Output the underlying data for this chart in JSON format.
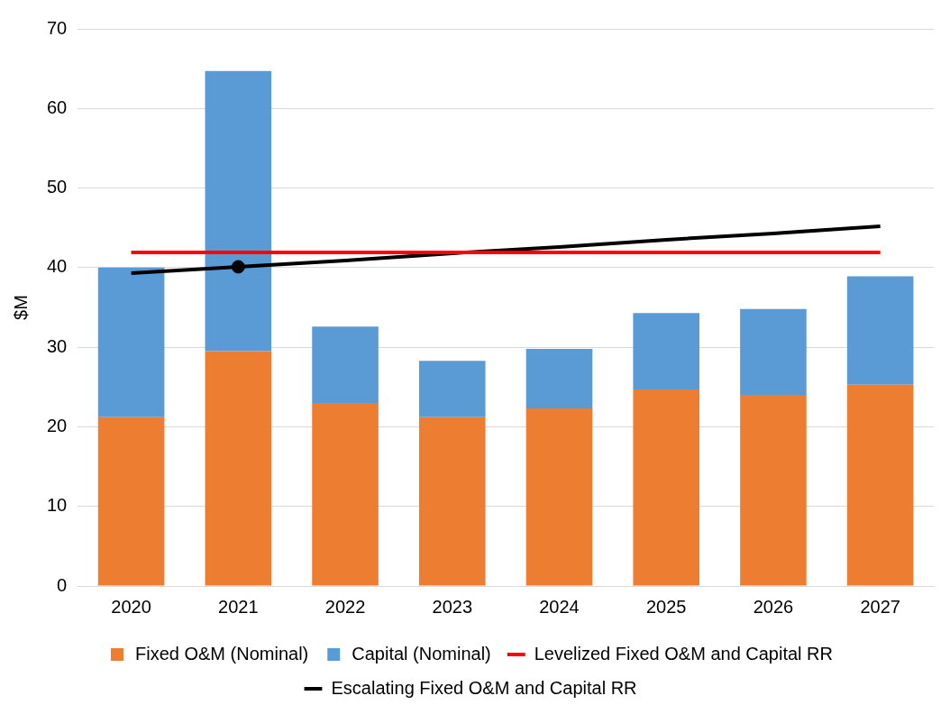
{
  "chart_data": {
    "type": "bar",
    "ylabel": "$M",
    "categories": [
      "2020",
      "2021",
      "2022",
      "2023",
      "2024",
      "2025",
      "2026",
      "2027"
    ],
    "stacked": true,
    "ylim": [
      0,
      70
    ],
    "yticks": [
      0,
      10,
      20,
      30,
      40,
      50,
      60,
      70
    ],
    "grid": "y",
    "legend": "bottom",
    "series": [
      {
        "name": "Fixed O&M (Nominal)",
        "color": "#ed7d31",
        "values": [
          21.2,
          29.5,
          23.0,
          21.2,
          22.3,
          24.7,
          24.0,
          25.3
        ]
      },
      {
        "name": "Capital (Nominal)",
        "color": "#5b9bd5",
        "values": [
          18.8,
          35.2,
          9.6,
          7.1,
          7.5,
          9.6,
          10.8,
          13.6
        ]
      },
      {
        "name": "Levelized Fixed O&M and Capital RR",
        "type": "line",
        "color": "#ff0000",
        "marker": "none",
        "values": [
          41.9,
          41.9,
          41.9,
          41.9,
          41.9,
          41.9,
          41.9,
          41.9
        ]
      },
      {
        "name": "Escalating Fixed O&M and Capital RR",
        "type": "line",
        "color": "#000000",
        "marker": "none",
        "values": [
          39.3,
          40.1,
          40.9,
          41.8,
          42.6,
          43.5,
          44.3,
          45.2
        ]
      },
      {
        "type": "scatter",
        "color": "#000000",
        "marker": "circle",
        "values": [
          null,
          40.1,
          null,
          null,
          null,
          null,
          null,
          null
        ]
      }
    ]
  }
}
